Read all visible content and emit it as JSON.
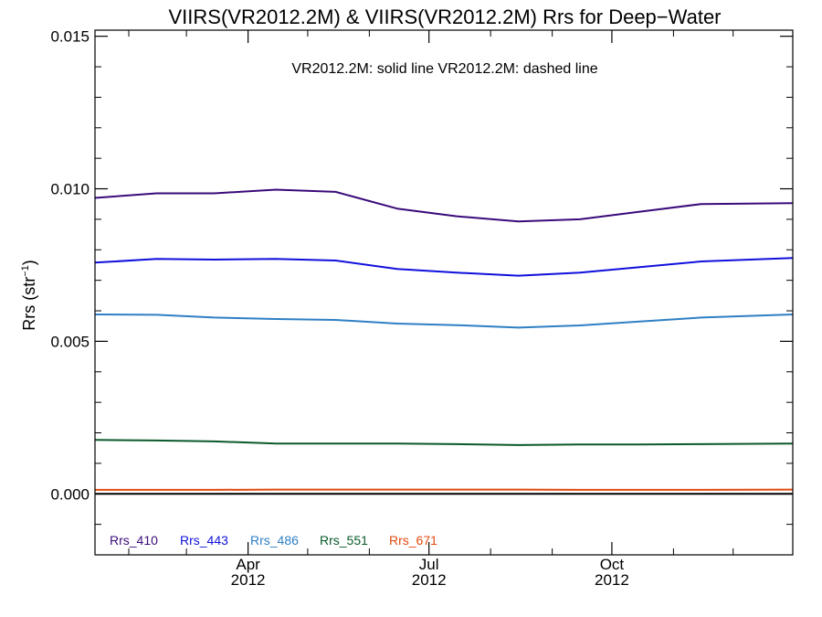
{
  "chart_data": {
    "type": "line",
    "title": "VIIRS(VR2012.2M) & VIIRS(VR2012.2M)  Rrs for Deep−Water",
    "annotation": "VR2012.2M: solid line   VR2012.2M: dashed line",
    "ylabel": "Rrs (str",
    "ylabel_sup": "−1",
    "ylabel_close": ")",
    "xlabel": "",
    "x_date_range": [
      "2012-01-15",
      "2012-12-31"
    ],
    "ylim": [
      -0.002,
      0.0152
    ],
    "y_ticks": [
      0.0,
      0.005,
      0.01,
      0.015
    ],
    "y_tick_labels": [
      "0.000",
      "0.005",
      "0.010",
      "0.015"
    ],
    "x_ticks": [
      {
        "date": "2012-04-01",
        "month": "Apr",
        "year": "2012"
      },
      {
        "date": "2012-07-01",
        "month": "Jul",
        "year": "2012"
      },
      {
        "date": "2012-10-01",
        "month": "Oct",
        "year": "2012"
      }
    ],
    "x_minor_ticks": [
      "2012-02-01",
      "2012-03-01",
      "2012-05-01",
      "2012-06-01",
      "2012-08-01",
      "2012-09-01",
      "2012-11-01",
      "2012-12-01"
    ],
    "zero_line": true,
    "grid": false,
    "legend_position": "bottom-left",
    "x": [
      "2012-01-15",
      "2012-02-15",
      "2012-03-15",
      "2012-04-15",
      "2012-05-15",
      "2012-06-15",
      "2012-07-15",
      "2012-08-15",
      "2012-09-15",
      "2012-10-15",
      "2012-11-15",
      "2012-12-31"
    ],
    "series": [
      {
        "name": "Rrs_410",
        "color": "#3a0a7a",
        "values": [
          0.0097,
          0.00985,
          0.00985,
          0.00997,
          0.0099,
          0.00935,
          0.0091,
          0.00893,
          0.009,
          0.00925,
          0.0095,
          0.00953
        ]
      },
      {
        "name": "Rrs_443",
        "color": "#1010dd",
        "values": [
          0.00758,
          0.0077,
          0.00768,
          0.0077,
          0.00765,
          0.00737,
          0.00725,
          0.00715,
          0.00725,
          0.00743,
          0.00762,
          0.00773
        ]
      },
      {
        "name": "Rrs_486",
        "color": "#2e7fc4",
        "values": [
          0.00588,
          0.00587,
          0.00578,
          0.00573,
          0.0057,
          0.00558,
          0.00553,
          0.00545,
          0.00552,
          0.00565,
          0.00578,
          0.00588
        ]
      },
      {
        "name": "Rrs_551",
        "color": "#0a5a2a",
        "values": [
          0.00177,
          0.00175,
          0.00172,
          0.00165,
          0.00165,
          0.00165,
          0.00163,
          0.0016,
          0.00162,
          0.00162,
          0.00163,
          0.00165
        ]
      },
      {
        "name": "Rrs_671",
        "color": "#e04a10",
        "values": [
          0.00013,
          0.00013,
          0.00013,
          0.00014,
          0.00014,
          0.00014,
          0.00014,
          0.00014,
          0.00013,
          0.00013,
          0.00013,
          0.00014
        ]
      }
    ]
  }
}
